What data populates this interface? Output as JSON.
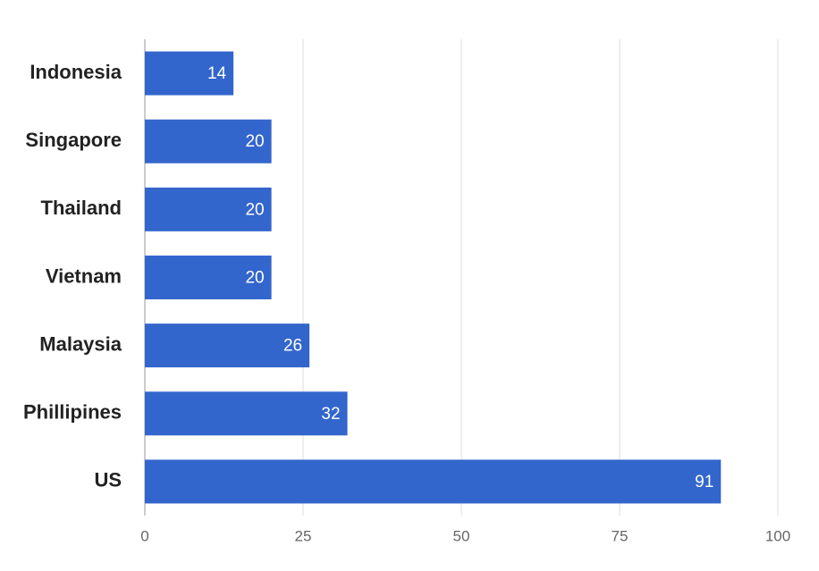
{
  "chart_data": {
    "type": "bar",
    "orientation": "horizontal",
    "categories": [
      "Indonesia",
      "Singapore",
      "Thailand",
      "Vietnam",
      "Malaysia",
      "Phillipines",
      "US"
    ],
    "values": [
      14,
      20,
      20,
      20,
      26,
      32,
      91
    ],
    "color": "#3366cc",
    "xlim": [
      0,
      100
    ],
    "xticks": [
      0,
      25,
      50,
      75,
      100
    ],
    "grid": true
  }
}
